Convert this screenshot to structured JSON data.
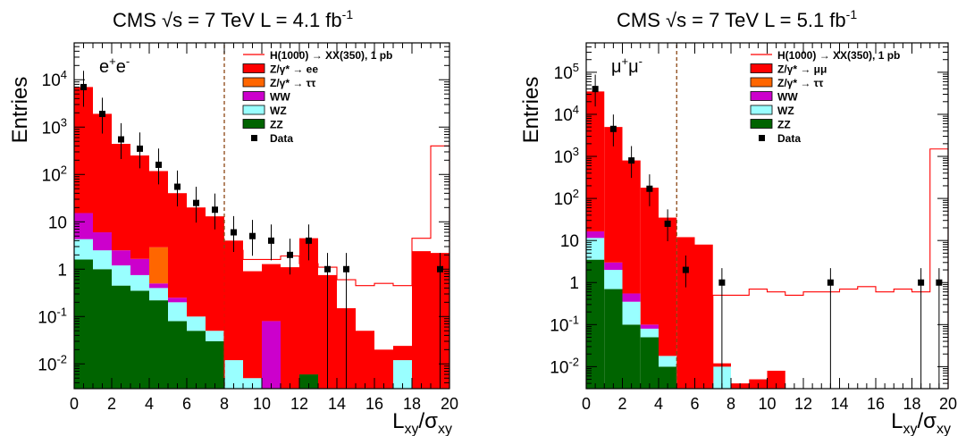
{
  "chart_data": [
    {
      "type": "bar",
      "title": "CMS   √s = 7 TeV   L = 4.1 fb",
      "title_sup": "-1",
      "channel": "e",
      "channel_sup": "+",
      "channel_tail": "e",
      "channel_sup2": "-",
      "ylabel": "Entries",
      "xlabel": "L",
      "xlabel_sub": "xy",
      "xlabel_mid": "/σ",
      "xlabel_sub2": "xy",
      "xlim": [
        0,
        20
      ],
      "ylim": [
        0.003,
        60000
      ],
      "yscale": "log",
      "x_ticks": [
        "0",
        "2",
        "4",
        "6",
        "8",
        "10",
        "12",
        "14",
        "16",
        "18",
        "20"
      ],
      "y_ticks": [
        {
          "value": 0.01,
          "base": "10",
          "exp": "-2"
        },
        {
          "value": 0.1,
          "base": "10",
          "exp": "-1"
        },
        {
          "value": 1,
          "base": "1",
          "exp": ""
        },
        {
          "value": 10,
          "base": "10",
          "exp": ""
        },
        {
          "value": 100,
          "base": "10",
          "exp": "2"
        },
        {
          "value": 1000,
          "base": "10",
          "exp": "3"
        },
        {
          "value": 10000,
          "base": "10",
          "exp": "4"
        }
      ],
      "cut_x": 8,
      "bin_edges": [
        0,
        1,
        2,
        3,
        4,
        5,
        6,
        7,
        8,
        9,
        10,
        11,
        12,
        13,
        14,
        15,
        16,
        17,
        18,
        19,
        20
      ],
      "stack": [
        {
          "name": "ZZ",
          "color": "#006400",
          "values": [
            1.6,
            1.0,
            0.45,
            0.35,
            0.22,
            0.08,
            0.05,
            0.03,
            0,
            0,
            0,
            0,
            0.006,
            0,
            0,
            0,
            0,
            0,
            0,
            0
          ]
        },
        {
          "name": "WZ",
          "color": "#99ffff",
          "values": [
            2.7,
            1.5,
            0.75,
            0.4,
            0.18,
            0.12,
            0.05,
            0.02,
            0.012,
            0.005,
            0,
            0,
            0,
            0,
            0,
            0,
            0,
            0.012,
            0,
            0
          ]
        },
        {
          "name": "WW",
          "color": "#cc00cc",
          "values": [
            11,
            3.5,
            1.3,
            0.9,
            0.1,
            0.05,
            0,
            0,
            0,
            0,
            0.08,
            0,
            0,
            0,
            0,
            0,
            0,
            0,
            0,
            0
          ]
        },
        {
          "name": "Z/γ* → ττ",
          "color": "#ff6600",
          "values": [
            0,
            0,
            0,
            0,
            2.4,
            0,
            0,
            0,
            0,
            0,
            0,
            0,
            0,
            0,
            0,
            0,
            0,
            0,
            0,
            0
          ]
        },
        {
          "name": "Z/γ* → ee",
          "color": "#ff0000",
          "values": [
            7000,
            1900,
            440,
            250,
            115,
            40,
            20,
            13,
            4,
            0.9,
            1.2,
            1.1,
            4.5,
            0.75,
            0.15,
            0.05,
            0.02,
            0.012,
            2.4,
            2.2
          ]
        }
      ],
      "signal": {
        "name": "H(1000) → XX(350), 1 pb",
        "color": "#ff0000",
        "values": [
          0,
          0,
          0,
          0,
          0,
          0,
          0,
          0,
          2.5,
          1.6,
          1.6,
          1.9,
          1.3,
          1.1,
          0.6,
          0.45,
          0.5,
          0.45,
          4.5,
          400
        ]
      },
      "data_points": [
        {
          "x": 0.5,
          "y": 7000
        },
        {
          "x": 1.5,
          "y": 1900
        },
        {
          "x": 2.5,
          "y": 550
        },
        {
          "x": 3.5,
          "y": 350
        },
        {
          "x": 4.5,
          "y": 160
        },
        {
          "x": 5.5,
          "y": 55
        },
        {
          "x": 6.5,
          "y": 25
        },
        {
          "x": 7.5,
          "y": 18
        },
        {
          "x": 8.5,
          "y": 6
        },
        {
          "x": 9.5,
          "y": 5
        },
        {
          "x": 10.5,
          "y": 4
        },
        {
          "x": 11.5,
          "y": 2
        },
        {
          "x": 12.5,
          "y": 4
        },
        {
          "x": 13.5,
          "y": 1
        },
        {
          "x": 14.5,
          "y": 1
        },
        {
          "x": 19.5,
          "y": 1
        }
      ],
      "legend": [
        {
          "label": "H(1000) → XX(350), 1 pb",
          "kind": "line",
          "color": "#ff0000"
        },
        {
          "label": "Z/γ* → ee",
          "kind": "box",
          "color": "#ff0000"
        },
        {
          "label": "Z/γ* → ττ",
          "kind": "box",
          "color": "#ff6600"
        },
        {
          "label": "WW",
          "kind": "box",
          "color": "#cc00cc"
        },
        {
          "label": "WZ",
          "kind": "box",
          "color": "#99ffff"
        },
        {
          "label": "ZZ",
          "kind": "box",
          "color": "#006400"
        },
        {
          "label": "Data",
          "kind": "marker",
          "color": "#000000"
        }
      ]
    },
    {
      "type": "bar",
      "title": "CMS   √s = 7 TeV   L = 5.1 fb",
      "title_sup": "-1",
      "channel": "μ",
      "channel_sup": "+",
      "channel_tail": "μ",
      "channel_sup2": "-",
      "ylabel": "Entries",
      "xlabel": "L",
      "xlabel_sub": "xy",
      "xlabel_mid": "/σ",
      "xlabel_sub2": "xy",
      "xlim": [
        0,
        20
      ],
      "ylim": [
        0.003,
        500000
      ],
      "yscale": "log",
      "x_ticks": [
        "0",
        "2",
        "4",
        "6",
        "8",
        "10",
        "12",
        "14",
        "16",
        "18",
        "20"
      ],
      "y_ticks": [
        {
          "value": 0.01,
          "base": "10",
          "exp": "-2"
        },
        {
          "value": 0.1,
          "base": "10",
          "exp": "-1"
        },
        {
          "value": 1,
          "base": "1",
          "exp": ""
        },
        {
          "value": 10,
          "base": "10",
          "exp": ""
        },
        {
          "value": 100,
          "base": "10",
          "exp": "2"
        },
        {
          "value": 1000,
          "base": "10",
          "exp": "3"
        },
        {
          "value": 10000,
          "base": "10",
          "exp": "4"
        },
        {
          "value": 100000,
          "base": "10",
          "exp": "5"
        }
      ],
      "cut_x": 5,
      "bin_edges": [
        0,
        1,
        2,
        3,
        4,
        5,
        6,
        7,
        8,
        9,
        10,
        11,
        12,
        13,
        14,
        15,
        16,
        17,
        18,
        19,
        20
      ],
      "stack": [
        {
          "name": "ZZ",
          "color": "#006400",
          "values": [
            3.5,
            0.7,
            0.1,
            0.05,
            0.01,
            0,
            0,
            0,
            0,
            0,
            0,
            0,
            0,
            0,
            0,
            0,
            0,
            0,
            0,
            0
          ]
        },
        {
          "name": "WZ",
          "color": "#99ffff",
          "values": [
            8,
            1.3,
            0.25,
            0.03,
            0.008,
            0,
            0,
            0.01,
            0,
            0,
            0,
            0,
            0,
            0,
            0,
            0,
            0,
            0,
            0,
            0
          ]
        },
        {
          "name": "WW",
          "color": "#cc00cc",
          "values": [
            5,
            1.0,
            0.2,
            0.02,
            0,
            0,
            0,
            0,
            0,
            0,
            0,
            0,
            0,
            0,
            0,
            0,
            0,
            0,
            0,
            0
          ]
        },
        {
          "name": "Z/γ* → ττ",
          "color": "#ff6600",
          "values": [
            0,
            0,
            0,
            0,
            0,
            0,
            0,
            0,
            0,
            0,
            0,
            0,
            0,
            0,
            0,
            0,
            0,
            0,
            0,
            0
          ]
        },
        {
          "name": "Z/γ* → μμ",
          "color": "#ff0000",
          "values": [
            35000,
            5000,
            800,
            180,
            35,
            12,
            8,
            0.002,
            0.004,
            0.005,
            0.008,
            0,
            0,
            0,
            0,
            0,
            0,
            0,
            0,
            0
          ]
        }
      ],
      "signal": {
        "name": "H(1000) → XX(350), 1 pb",
        "color": "#ff0000",
        "values": [
          0,
          0,
          0,
          0,
          0,
          0,
          0,
          0.5,
          0.5,
          0.7,
          0.6,
          0.5,
          0.6,
          0.6,
          0.7,
          0.8,
          0.6,
          0.7,
          0.6,
          1500
        ]
      },
      "data_points": [
        {
          "x": 0.5,
          "y": 40000
        },
        {
          "x": 1.5,
          "y": 4500
        },
        {
          "x": 2.5,
          "y": 800
        },
        {
          "x": 3.5,
          "y": 170
        },
        {
          "x": 4.5,
          "y": 25
        },
        {
          "x": 5.5,
          "y": 2
        },
        {
          "x": 7.5,
          "y": 1
        },
        {
          "x": 13.5,
          "y": 1
        },
        {
          "x": 18.5,
          "y": 1
        },
        {
          "x": 19.5,
          "y": 1
        }
      ],
      "legend": [
        {
          "label": "H(1000) → XX(350), 1 pb",
          "kind": "line",
          "color": "#ff0000"
        },
        {
          "label": "Z/γ* → μμ",
          "kind": "box",
          "color": "#ff0000"
        },
        {
          "label": "Z/γ* → ττ",
          "kind": "box",
          "color": "#ff6600"
        },
        {
          "label": "WW",
          "kind": "box",
          "color": "#cc00cc"
        },
        {
          "label": "WZ",
          "kind": "box",
          "color": "#99ffff"
        },
        {
          "label": "ZZ",
          "kind": "box",
          "color": "#006400"
        },
        {
          "label": "Data",
          "kind": "marker",
          "color": "#000000"
        }
      ]
    }
  ]
}
